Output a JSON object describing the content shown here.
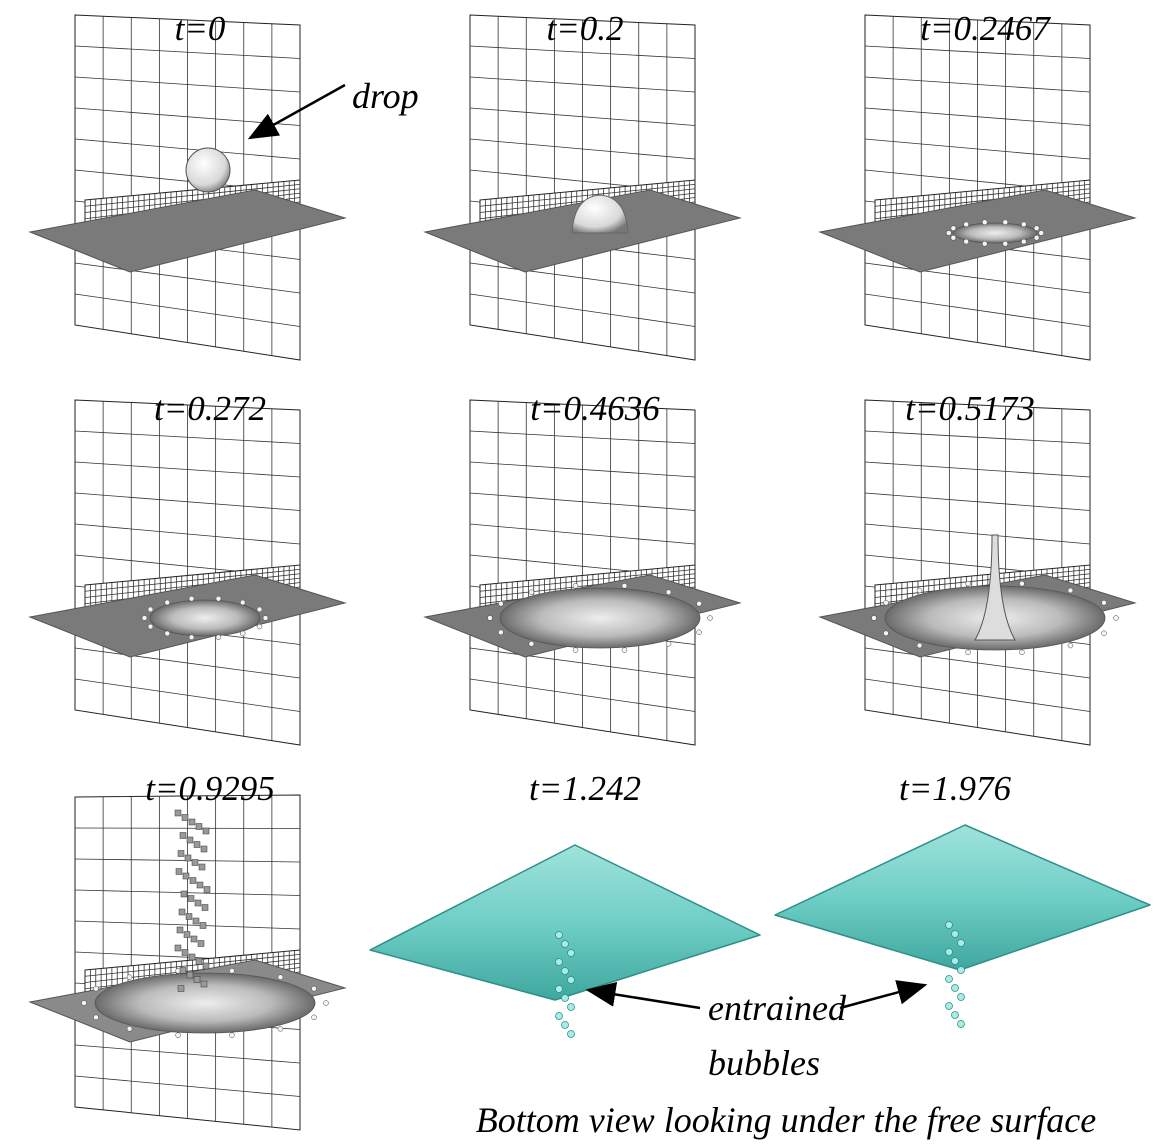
{
  "panels": [
    {
      "label": "t=0"
    },
    {
      "label": "t=0.2"
    },
    {
      "label": "t=0.2467"
    },
    {
      "label": "t=0.272"
    },
    {
      "label": "t=0.4636"
    },
    {
      "label": "t=0.5173"
    },
    {
      "label": "t=0.9295"
    },
    {
      "label": "t=1.242"
    },
    {
      "label": "t=1.976"
    }
  ],
  "annotations": {
    "drop": "drop",
    "entrained": "entrained",
    "bubbles": "bubbles"
  },
  "caption": "Bottom view looking under the free surface"
}
